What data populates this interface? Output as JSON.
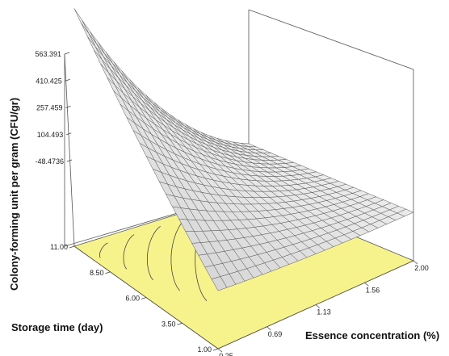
{
  "chart_data": {
    "type": "surface3d",
    "zlabel": "Colony-forming unit per gram (CFU/gr)",
    "ylabel": "Storage time (day)",
    "xlabel": "Essence concentration (%)",
    "z_ticks": [
      "563.391",
      "410.425",
      "257.459",
      "104.493",
      "-48.4736"
    ],
    "y_ticks": [
      "1.00",
      "3.50",
      "6.00",
      "8.50",
      "11.00"
    ],
    "x_ticks": [
      "0.25",
      "0.69",
      "1.13",
      "1.56",
      "2.00"
    ],
    "x_range": [
      0.25,
      2.0
    ],
    "y_range": [
      1.0,
      11.0
    ],
    "z_range": [
      -48.4736,
      563.391
    ],
    "surface": {
      "x": [
        0.25,
        2.0
      ],
      "y": [
        1.0,
        11.0
      ],
      "corners": {
        "x0.25_y11.00": 563.391,
        "x2.00_y11.00": -48.4736,
        "x0.25_y1.00": -48.4736,
        "x2.00_y1.00": -48.4736
      },
      "trend": "decreasing with essence concentration and with decreasing storage time; curved (quadratic) surface"
    },
    "grid": true,
    "contour_floor": true,
    "colors": {
      "floor": "#f7f38c",
      "floor_lines": "#444444",
      "surface_fill": "#eeeeee",
      "surface_lines": "#555555"
    }
  }
}
